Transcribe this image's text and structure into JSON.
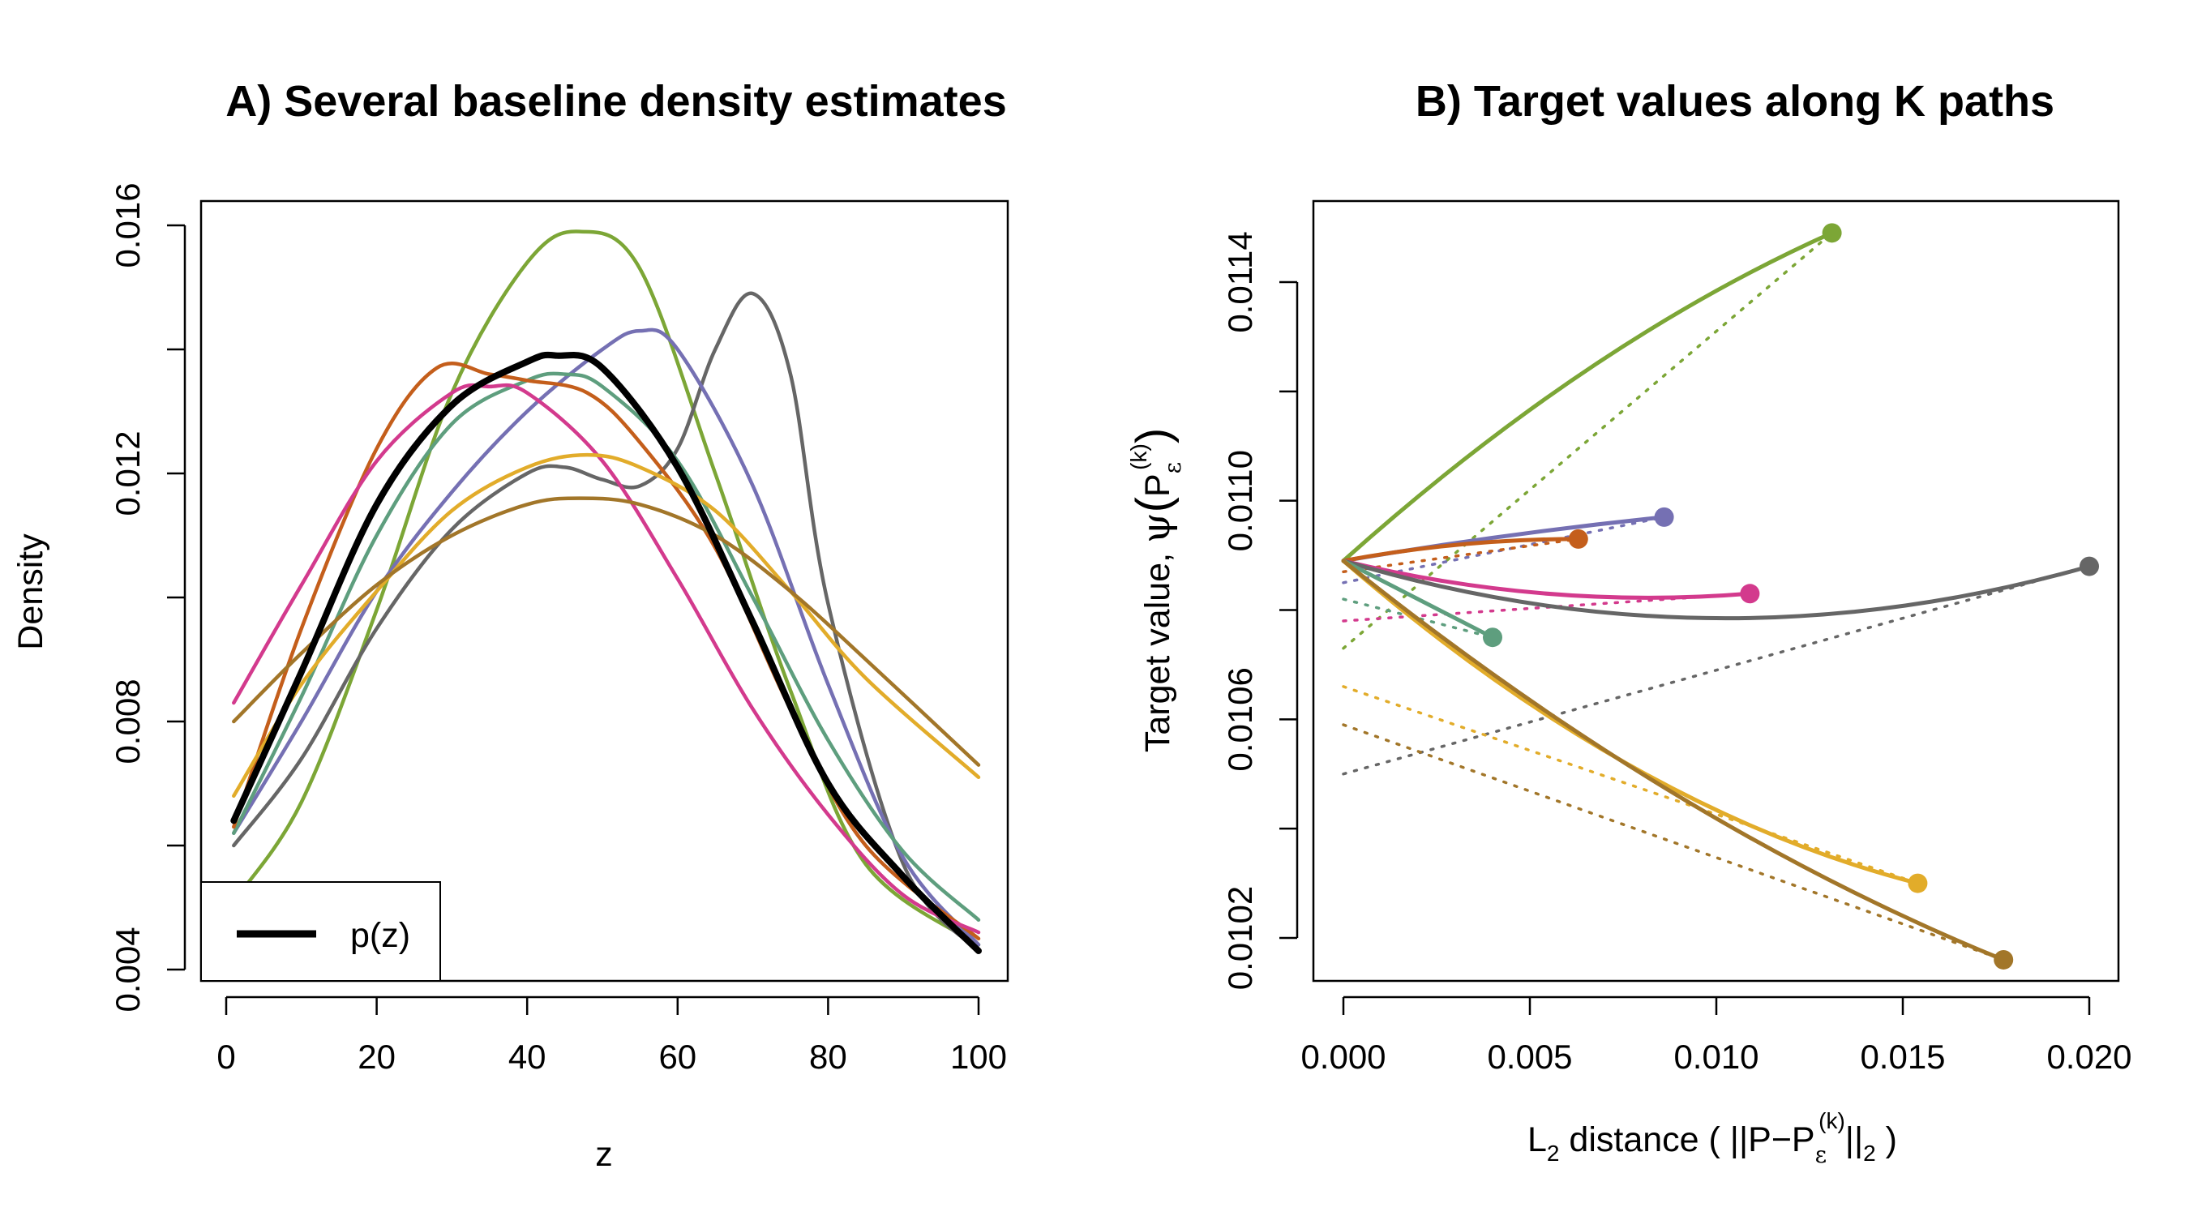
{
  "chart_data": [
    {
      "type": "line",
      "title": "A) Several baseline density estimates",
      "xlabel": "z",
      "ylabel": "Density",
      "xlim": [
        0,
        100
      ],
      "ylim": [
        0.004,
        0.016
      ],
      "x_ticks": [
        0,
        20,
        40,
        60,
        80,
        100
      ],
      "x_tick_labels": [
        "0",
        "20",
        "40",
        "60",
        "80",
        "100"
      ],
      "y_ticks": [
        0.004,
        0.008,
        0.012,
        0.016
      ],
      "y_tick_labels": [
        "0.004",
        "0.008",
        "0.012",
        "0.016"
      ],
      "grid": false,
      "legend": {
        "position": "bottom-left",
        "entries": [
          "p(z)"
        ]
      },
      "series": [
        {
          "name": "p(z)",
          "color": "#000000",
          "width": "thick",
          "points": [
            [
              1,
              0.0064
            ],
            [
              10,
              0.0088
            ],
            [
              20,
              0.0115
            ],
            [
              30,
              0.0131
            ],
            [
              40,
              0.0138
            ],
            [
              44,
              0.0139
            ],
            [
              50,
              0.0137
            ],
            [
              60,
              0.0121
            ],
            [
              70,
              0.0096
            ],
            [
              80,
              0.007
            ],
            [
              90,
              0.0055
            ],
            [
              100,
              0.0043
            ]
          ]
        },
        {
          "color": "#7CA636",
          "points": [
            [
              1,
              0.0051
            ],
            [
              10,
              0.0067
            ],
            [
              20,
              0.0098
            ],
            [
              30,
              0.0133
            ],
            [
              40,
              0.0154
            ],
            [
              47,
              0.0159
            ],
            [
              55,
              0.0153
            ],
            [
              65,
              0.012
            ],
            [
              75,
              0.0085
            ],
            [
              85,
              0.0057
            ],
            [
              100,
              0.0044
            ]
          ]
        },
        {
          "color": "#666666",
          "points": [
            [
              1,
              0.006
            ],
            [
              10,
              0.0074
            ],
            [
              20,
              0.0095
            ],
            [
              30,
              0.0111
            ],
            [
              40,
              0.012
            ],
            [
              45,
              0.0121
            ],
            [
              50,
              0.0119
            ],
            [
              55,
              0.0118
            ],
            [
              60,
              0.0124
            ],
            [
              65,
              0.014
            ],
            [
              70,
              0.0149
            ],
            [
              75,
              0.0136
            ],
            [
              80,
              0.0099
            ],
            [
              90,
              0.0057
            ],
            [
              100,
              0.0043
            ]
          ]
        },
        {
          "color": "#7570B3",
          "points": [
            [
              1,
              0.0062
            ],
            [
              10,
              0.008
            ],
            [
              20,
              0.0101
            ],
            [
              30,
              0.0117
            ],
            [
              40,
              0.013
            ],
            [
              50,
              0.014
            ],
            [
              55,
              0.0143
            ],
            [
              60,
              0.014
            ],
            [
              70,
              0.0118
            ],
            [
              80,
              0.0086
            ],
            [
              90,
              0.0058
            ],
            [
              100,
              0.0044
            ]
          ]
        },
        {
          "color": "#5E9E7E",
          "points": [
            [
              1,
              0.0062
            ],
            [
              10,
              0.0084
            ],
            [
              20,
              0.011
            ],
            [
              30,
              0.0128
            ],
            [
              40,
              0.0135
            ],
            [
              45,
              0.0136
            ],
            [
              50,
              0.0134
            ],
            [
              60,
              0.0122
            ],
            [
              70,
              0.01
            ],
            [
              80,
              0.0077
            ],
            [
              90,
              0.0059
            ],
            [
              100,
              0.0048
            ]
          ]
        },
        {
          "color": "#C45E1B",
          "points": [
            [
              1,
              0.0063
            ],
            [
              10,
              0.0095
            ],
            [
              20,
              0.0124
            ],
            [
              28,
              0.0137
            ],
            [
              35,
              0.0136
            ],
            [
              40,
              0.0135
            ],
            [
              48,
              0.0133
            ],
            [
              55,
              0.0125
            ],
            [
              65,
              0.0108
            ],
            [
              75,
              0.0082
            ],
            [
              85,
              0.006
            ],
            [
              100,
              0.0045
            ]
          ]
        },
        {
          "color": "#D33A8D",
          "points": [
            [
              1,
              0.0083
            ],
            [
              10,
              0.0102
            ],
            [
              20,
              0.0122
            ],
            [
              30,
              0.0133
            ],
            [
              35,
              0.0134
            ],
            [
              40,
              0.0133
            ],
            [
              50,
              0.0122
            ],
            [
              60,
              0.0103
            ],
            [
              70,
              0.0082
            ],
            [
              80,
              0.0065
            ],
            [
              90,
              0.0052
            ],
            [
              100,
              0.0046
            ]
          ]
        },
        {
          "color": "#E2AC2A",
          "points": [
            [
              1,
              0.0068
            ],
            [
              10,
              0.0086
            ],
            [
              20,
              0.0101
            ],
            [
              30,
              0.0114
            ],
            [
              40,
              0.0121
            ],
            [
              48,
              0.0123
            ],
            [
              55,
              0.0121
            ],
            [
              65,
              0.0114
            ],
            [
              75,
              0.0101
            ],
            [
              85,
              0.0087
            ],
            [
              100,
              0.0071
            ]
          ]
        },
        {
          "color": "#A27629",
          "points": [
            [
              1,
              0.008
            ],
            [
              10,
              0.0091
            ],
            [
              20,
              0.0102
            ],
            [
              30,
              0.011
            ],
            [
              40,
              0.0115
            ],
            [
              47,
              0.0116
            ],
            [
              55,
              0.0115
            ],
            [
              65,
              0.011
            ],
            [
              75,
              0.0101
            ],
            [
              85,
              0.009
            ],
            [
              100,
              0.0073
            ]
          ]
        }
      ]
    },
    {
      "type": "line",
      "title": "B) Target values along K paths",
      "xlabel": "L2 distance ( ||P−Pε(k)||2 )",
      "ylabel": "Target value, ψ(Pε(k))",
      "xlim": [
        0,
        0.02
      ],
      "ylim": [
        0.0102,
        0.0114
      ],
      "x_ticks": [
        0,
        0.005,
        0.01,
        0.015,
        0.02
      ],
      "x_tick_labels": [
        "0.000",
        "0.005",
        "0.010",
        "0.015",
        "0.020"
      ],
      "y_ticks": [
        0.0102,
        0.0106,
        0.011,
        0.0114
      ],
      "y_tick_labels": [
        "0.0102",
        "0.0106",
        "0.0110",
        "0.0114"
      ],
      "grid": false,
      "start_point": [
        0,
        0.01089
      ],
      "paths": [
        {
          "color": "#7CA636",
          "end": [
            0.0131,
            0.01149
          ],
          "mid_offset": 5e-05,
          "tangent_intercept": 0.01073
        },
        {
          "color": "#7570B3",
          "end": [
            0.0086,
            0.01097
          ],
          "mid_offset": 5e-06,
          "tangent_intercept": 0.01085
        },
        {
          "color": "#C45E1B",
          "end": [
            0.0063,
            0.01093
          ],
          "mid_offset": 1e-05,
          "tangent_intercept": 0.01087
        },
        {
          "color": "#D33A8D",
          "end": [
            0.0109,
            0.01083
          ],
          "mid_offset": -3e-05,
          "tangent_intercept": 0.01078
        },
        {
          "color": "#666666",
          "end": [
            0.02,
            0.01088
          ],
          "mid_offset": -0.0001,
          "tangent_intercept": 0.0105
        },
        {
          "color": "#5E9E7E",
          "end": [
            0.004,
            0.01075
          ],
          "mid_offset": 0.0,
          "tangent_intercept": 0.01082
        },
        {
          "color": "#E2AC2A",
          "end": [
            0.0154,
            0.0103
          ],
          "mid_offset": -8e-05,
          "tangent_intercept": 0.01066
        },
        {
          "color": "#A27629",
          "end": [
            0.0177,
            0.01016
          ],
          "mid_offset": -6e-05,
          "tangent_intercept": 0.01059
        }
      ]
    }
  ],
  "labels": {
    "panel_b_xlabel_pre": "L",
    "panel_b_xlabel_sub2": "2",
    "panel_b_xlabel_mid": " distance ( ||P−P",
    "panel_b_eps": "ε",
    "panel_b_k": "(k)",
    "panel_b_xlabel_post": "||",
    "panel_b_xlabel_sub2b": "2",
    "panel_b_xlabel_end": " )",
    "panel_b_ylabel_pre": "Target value, ",
    "panel_b_psi": "ψ",
    "panel_b_P": "P",
    "panel_b_eps_y": "ε",
    "panel_b_k_y": "(k)"
  }
}
